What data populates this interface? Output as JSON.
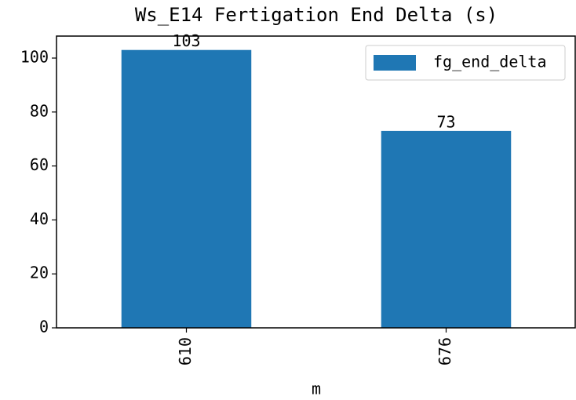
{
  "chart_data": {
    "type": "bar",
    "title": "Ws_E14 Fertigation End Delta (s)",
    "xlabel": "m",
    "categories": [
      "610",
      "676"
    ],
    "series": [
      {
        "name": "fg_end_delta",
        "color": "#1f77b4",
        "values": [
          103,
          73
        ]
      }
    ],
    "ylim": [
      0,
      108.15
    ],
    "yticks": [
      0,
      20,
      40,
      60,
      80,
      100
    ],
    "grid": false,
    "legend": "upper right"
  }
}
